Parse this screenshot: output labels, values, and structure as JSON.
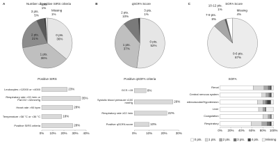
{
  "chart_data": [
    {
      "type": "pie",
      "panel": "A",
      "title": "Number of positive SIRS criteria",
      "categories": [
        "0 pts.",
        "1 pts.",
        "2 pts.",
        "3 pts.",
        "4 pts.",
        "Missing"
      ],
      "values": [
        36,
        36,
        21,
        5,
        1,
        1
      ],
      "value_labels": [
        "36%",
        "36%",
        "21%",
        "5%",
        "1%",
        "1%"
      ],
      "colors": [
        "#e6e6e6",
        "#bfbfbf",
        "#8c8c8c",
        "#5a5a5a",
        "#303030",
        "#ffffff"
      ]
    },
    {
      "type": "pie",
      "panel": "B",
      "title": "qSOFA Score",
      "categories": [
        "0 pts.",
        "1 pts.",
        "2 pts.",
        "3 pts."
      ],
      "values": [
        52,
        37,
        10,
        1
      ],
      "value_labels": [
        "52%",
        "37%",
        "10%",
        "1%"
      ],
      "colors": [
        "#e6e6e6",
        "#bfbfbf",
        "#7a7a7a",
        "#333333"
      ]
    },
    {
      "type": "pie",
      "panel": "C",
      "title": "SOFA Score",
      "categories": [
        "0-6 pts.",
        "7-9 pts.",
        "10-12 pts.",
        "Missing"
      ],
      "values": [
        87,
        8,
        1,
        4
      ],
      "value_labels": [
        "87%",
        "8%",
        "1%",
        "4%"
      ],
      "colors": [
        "#ececec",
        "#a6a6a6",
        "#555555",
        "#ffffff"
      ]
    },
    {
      "type": "barh",
      "title": "Positive SIRS",
      "color": "#d9d9d9",
      "categories": [
        "Leukocytes >12000 or <4000",
        "Respiratory rate >20 /min or PaCO2 <32mmHg",
        "Heart rate >90 bpm",
        "Temperature >38 °C or <36 °C",
        "Positive SIRS criteria"
      ],
      "values": [
        23,
        35,
        28,
        18,
        28
      ],
      "value_labels": [
        "23%",
        "35%",
        "28%",
        "18%",
        "28%"
      ],
      "xlim": [
        0,
        40
      ],
      "xticks": [
        {
          "value": 0,
          "label": "0%"
        },
        {
          "value": 10,
          "label": "10%"
        },
        {
          "value": 20,
          "label": "20%"
        },
        {
          "value": 30,
          "label": "30%"
        },
        {
          "value": 40,
          "label": "40%"
        }
      ]
    },
    {
      "type": "barh",
      "title": "Positive qSOFA criteria",
      "color": "#d9d9d9",
      "categories": [
        "GCS <15",
        "Systolic blood pressure ≤100 mmHg",
        "Respiratory rate ≥22 /min",
        "Positive qSOFA score"
      ],
      "values": [
        8,
        26,
        22,
        10
      ],
      "value_labels": [
        "8%",
        "26%",
        "22%",
        "10%"
      ],
      "xlim": [
        0,
        30
      ],
      "xticks": [
        {
          "value": 0,
          "label": "0%"
        },
        {
          "value": 10,
          "label": "10%"
        },
        {
          "value": 20,
          "label": "20%"
        },
        {
          "value": 30,
          "label": "30%"
        }
      ]
    },
    {
      "type": "stacked_barh",
      "title": "SOFA",
      "categories": [
        "Renal",
        "Central nervous system",
        "Cardiovascular/Hypotension",
        "Liver",
        "Coagulation",
        "Respiratory"
      ],
      "series": [
        {
          "name": "0 pts.",
          "color": "#ffffff",
          "values": [
            62,
            78,
            70,
            72,
            80,
            58
          ]
        },
        {
          "name": "1 pts.",
          "color": "#d9d9d9",
          "values": [
            20,
            8,
            10,
            8,
            10,
            20
          ]
        },
        {
          "name": "2 pts.",
          "color": "#a6a6a6",
          "values": [
            8,
            5,
            5,
            4,
            4,
            10
          ]
        },
        {
          "name": "3 pts.",
          "color": "#737373",
          "values": [
            4,
            3,
            3,
            1,
            1,
            5
          ]
        },
        {
          "name": "4 pts.",
          "color": "#404040",
          "values": [
            2,
            2,
            7,
            1,
            1,
            3
          ]
        },
        {
          "name": "Missing",
          "color": "#f2f2f2",
          "values": [
            4,
            4,
            5,
            14,
            4,
            4
          ]
        }
      ],
      "xlim": [
        0,
        100
      ],
      "xticks": [
        {
          "value": 0,
          "label": "0%"
        },
        {
          "value": 20,
          "label": "20%"
        },
        {
          "value": 40,
          "label": "40%"
        },
        {
          "value": 60,
          "label": "60%"
        },
        {
          "value": 80,
          "label": "80%"
        },
        {
          "value": 100,
          "label": "100%"
        }
      ]
    }
  ]
}
